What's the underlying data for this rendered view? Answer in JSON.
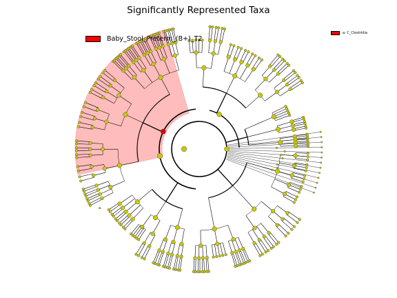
{
  "title": "Significantly Represented Taxa",
  "legend": {
    "group_label": "Baby_Stool_Preterm_(B+)_T2",
    "group_color": "#ff0000",
    "clade_label": "a: C_Clostridia",
    "clade_color": "#ff0000"
  },
  "cladogram": {
    "node_color": "#c8c80a",
    "highlight_node_color": "#e00000",
    "clade_shading_color": "#ffbcbc",
    "clade_marker": "a"
  }
}
